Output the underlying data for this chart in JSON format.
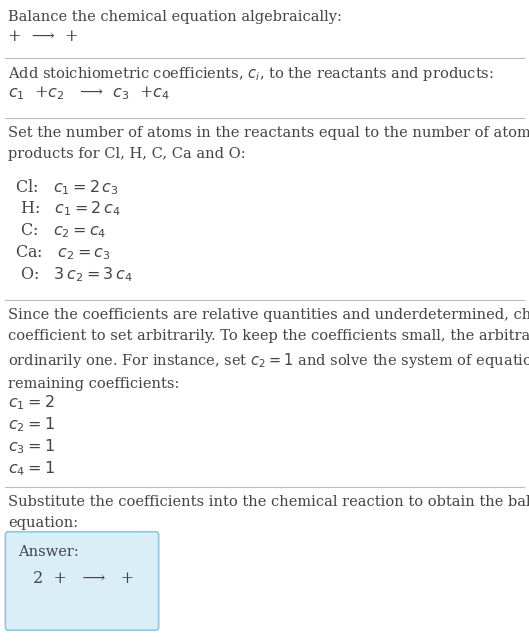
{
  "bg_color": "#ffffff",
  "text_color": "#444444",
  "title": "Balance the chemical equation algebraically:",
  "line1": "+  ⟶  +",
  "section2_title": "Add stoichiometric coefficients, $c_i$, to the reactants and products:",
  "section2_eq": "$c_1$  +$c_2$   ⟶  $c_3$  +$c_4$",
  "section3_title": "Set the number of atoms in the reactants equal to the number of atoms in the\nproducts for Cl, H, C, Ca and O:",
  "section3_lines": [
    " Cl:   $c_1 = 2\\,c_3$",
    "  H:   $c_1 = 2\\,c_4$",
    "  C:   $c_2 = c_4$",
    " Ca:   $c_2 = c_3$",
    "  O:   $3\\,c_2 = 3\\,c_4$"
  ],
  "section4_title": "Since the coefficients are relative quantities and underdetermined, choose a\ncoefficient to set arbitrarily. To keep the coefficients small, the arbitrary value is\nordinarily one. For instance, set $c_2 = 1$ and solve the system of equations for the\nremaining coefficients:",
  "section4_lines": [
    "$c_1 = 2$",
    "$c_2 = 1$",
    "$c_3 = 1$",
    "$c_4 = 1$"
  ],
  "section5_title": "Substitute the coefficients into the chemical reaction to obtain the balanced\nequation:",
  "answer_label": "Answer:",
  "answer_eq": " 2  +   ⟶   +",
  "answer_box_color": "#daeef8",
  "answer_box_edge": "#90c8e0",
  "divider_color": "#bbbbbb",
  "font_size_main": 10.5,
  "font_size_eq": 11.5
}
